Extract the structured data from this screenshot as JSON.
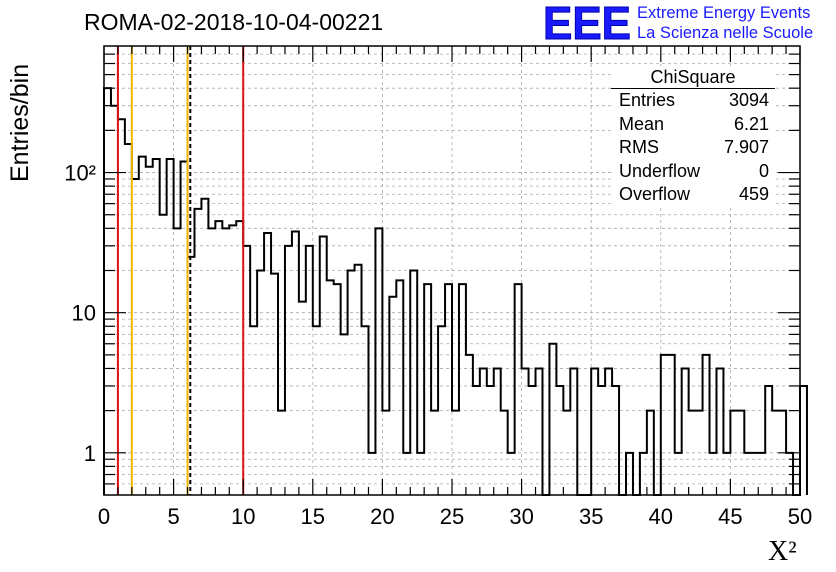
{
  "title": "ROMA-02-2018-10-04-00221",
  "brand": {
    "logo_text": "EEE",
    "line1": "Extreme Energy Events",
    "line2": "La Scienza nelle Scuole",
    "color": "#1a1aff"
  },
  "stats": {
    "title": "ChiSquare",
    "rows": [
      {
        "label": "Entries",
        "value": "3094"
      },
      {
        "label": "Mean",
        "value": "6.21"
      },
      {
        "label": "RMS",
        "value": "7.907"
      },
      {
        "label": "Underflow",
        "value": "0"
      },
      {
        "label": "Overflow",
        "value": "459"
      }
    ]
  },
  "chart_data": {
    "type": "bar",
    "title": "ROMA-02-2018-10-04-00221",
    "xlabel": "X²",
    "ylabel": "Entries/bin",
    "xlim": [
      0,
      50
    ],
    "ylim": [
      0.5,
      800
    ],
    "yscale": "log",
    "grid": true,
    "bin_width": 0.5,
    "x_ticks": [
      "0",
      "5",
      "10",
      "15",
      "20",
      "25",
      "30",
      "35",
      "40",
      "45",
      "50"
    ],
    "y_ticks": [
      "1",
      "10",
      "10²"
    ],
    "y_tick_values": [
      1,
      10,
      100
    ],
    "values": [
      400,
      300,
      240,
      160,
      90,
      130,
      110,
      125,
      50,
      125,
      40,
      120,
      25,
      55,
      65,
      40,
      45,
      40,
      42,
      45,
      30,
      8,
      20,
      37,
      19,
      2,
      30,
      38,
      12,
      30,
      8,
      35,
      17,
      16,
      7,
      20,
      22,
      8,
      1,
      40,
      2,
      13,
      17,
      1,
      20,
      1,
      16,
      2,
      8,
      16,
      2,
      16,
      5,
      3,
      4,
      3,
      4,
      2,
      1,
      16,
      4,
      3,
      4,
      0,
      6,
      3,
      2,
      4,
      0,
      0,
      4,
      3,
      4,
      3,
      0,
      1,
      0,
      1,
      2,
      0,
      5,
      5,
      1,
      4,
      2,
      2,
      5,
      1,
      4,
      1,
      2,
      2,
      1,
      1,
      1,
      3,
      2,
      2,
      1,
      0,
      3
    ],
    "vertical_lines": [
      {
        "x": 1,
        "color": "#dd1111",
        "style": "solid"
      },
      {
        "x": 2,
        "color": "#f2b800",
        "style": "solid"
      },
      {
        "x": 6,
        "color": "#f2b800",
        "style": "solid"
      },
      {
        "x": 6.2,
        "color": "#000000",
        "style": "dashed"
      },
      {
        "x": 10,
        "color": "#dd1111",
        "style": "solid"
      }
    ]
  }
}
